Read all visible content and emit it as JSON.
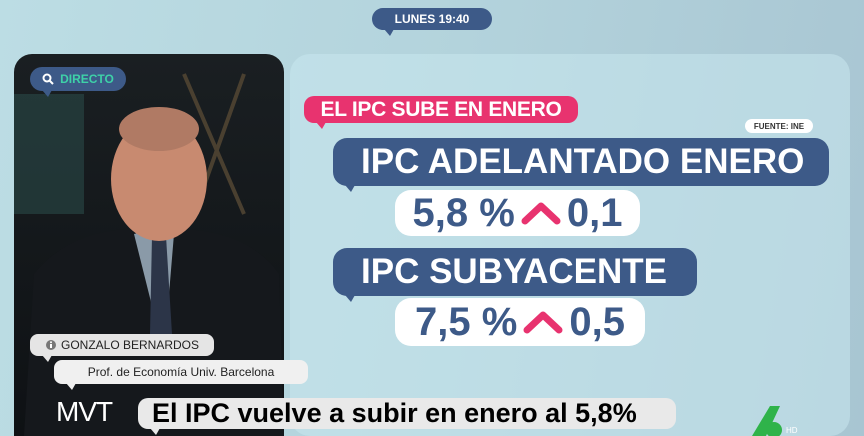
{
  "header": {
    "time": "LUNES 19:40"
  },
  "video": {
    "live_label": "DIRECTO",
    "guest_name": "GONZALO BERNARDOS",
    "guest_role": "Prof. de Economía Univ. Barcelona"
  },
  "graphic": {
    "title": "EL IPC SUBE EN ENERO",
    "source": "FUENTE: INE",
    "items": [
      {
        "label": "IPC ADELANTADO ENERO",
        "value": "5,8 %",
        "change": "0,1",
        "direction": "up"
      },
      {
        "label": "IPC SUBYACENTE",
        "value": "7,5 %",
        "change": "0,5",
        "direction": "up"
      }
    ]
  },
  "ticker": {
    "program_logo": "MVT",
    "headline": "El IPC vuelve a subir en enero al 5,8%"
  },
  "channel": {
    "suffix": "HD"
  },
  "colors": {
    "brand_blue": "#3d5a88",
    "accent_pink": "#e8336f",
    "live_green": "#3ed1a8",
    "channel_green": "#2fb34a"
  }
}
